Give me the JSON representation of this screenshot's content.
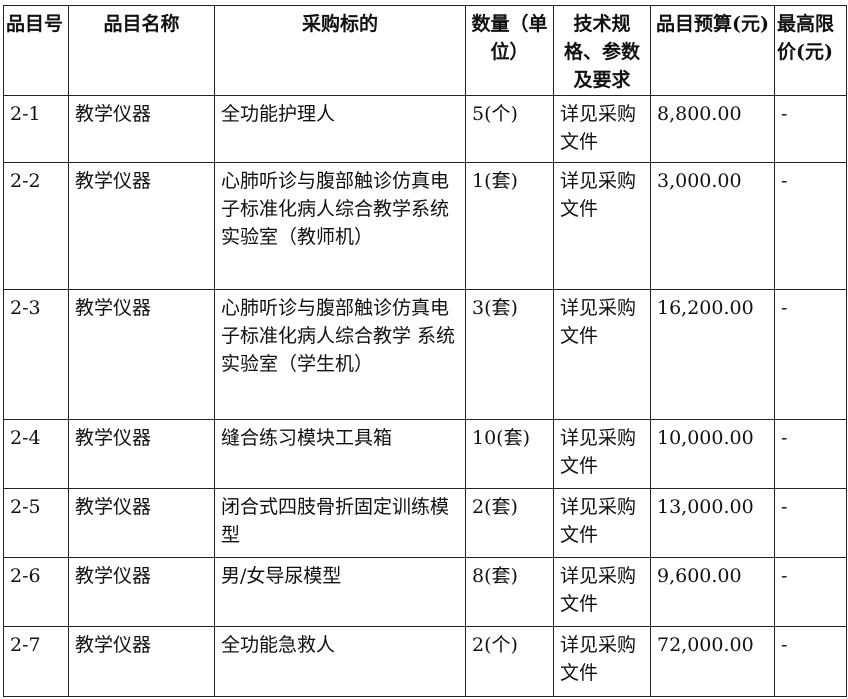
{
  "headers": [
    "品目号",
    "品目名称",
    "采购标的",
    "数量（单位）",
    "技术规格、参数及要求",
    "品目预算(元)",
    "最高限价(元)"
  ],
  "rows": [
    {
      "id": "2-1",
      "name": "教学仪器",
      "item": "全功能护理人",
      "qty": "5(个)",
      "spec": "详见采购文件",
      "budget": "8,800.00",
      "max": "-"
    },
    {
      "id": "2-2",
      "name": "教学仪器",
      "item": "心肺听诊与腹部触诊仿真电子标准化病人综合教学系统实验室（教师机）",
      "qty": "1(套)",
      "spec": "详见采购文件",
      "budget": "3,000.00",
      "max": "-"
    },
    {
      "id": "2-3",
      "name": "教学仪器",
      "item": "心肺听诊与腹部触诊仿真电子标准化病人综合教学 系统实验室（学生机）",
      "qty": "3(套)",
      "spec": "详见采购文件",
      "budget": "16,200.00",
      "max": "-"
    },
    {
      "id": "2-4",
      "name": "教学仪器",
      "item": "缝合练习模块工具箱",
      "qty": "10(套)",
      "spec": "详见采购文件",
      "budget": "10,000.00",
      "max": "-"
    },
    {
      "id": "2-5",
      "name": "教学仪器",
      "item": "闭合式四肢骨折固定训练模型",
      "qty": "2(套)",
      "spec": "详见采购文件",
      "budget": "13,000.00",
      "max": "-"
    },
    {
      "id": "2-6",
      "name": "教学仪器",
      "item": "男/女导尿模型",
      "qty": "8(套)",
      "spec": "详见采购文件",
      "budget": "9,600.00",
      "max": "-"
    },
    {
      "id": "2-7",
      "name": "教学仪器",
      "item": "全功能急救人",
      "qty": "2(个)",
      "spec": "详见采购文件",
      "budget": "72,000.00",
      "max": "-"
    }
  ]
}
